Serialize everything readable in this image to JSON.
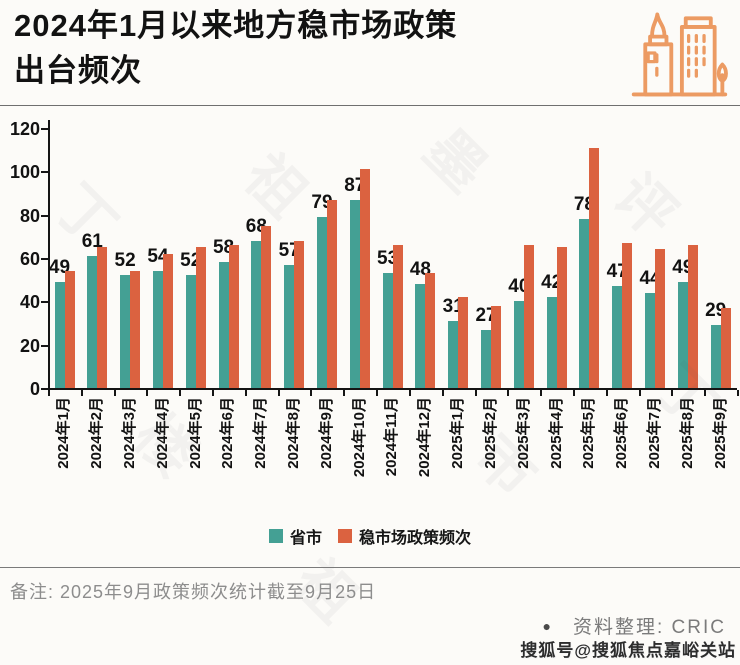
{
  "title": {
    "line1": "2024年1月以来地方稳市场政策",
    "line2": "出台频次"
  },
  "colors": {
    "provinces_green": "#44A094",
    "policy_orange": "#DB6240",
    "icon_orange": "#EC9B63",
    "axis_black": "#151515",
    "note_gray": "#8d8d8d"
  },
  "chart_data": {
    "type": "bar",
    "title": "2024年1月以来地方稳市场政策出台频次",
    "categories": [
      "2024年1月",
      "2024年2月",
      "2024年3月",
      "2024年4月",
      "2024年5月",
      "2024年6月",
      "2024年7月",
      "2024年8月",
      "2024年9月",
      "2024年10月",
      "2024年11月",
      "2024年12月",
      "2025年1月",
      "2025年2月",
      "2025年3月",
      "2025年4月",
      "2025年5月",
      "2025年6月",
      "2025年7月",
      "2025年8月",
      "2025年9月"
    ],
    "series": [
      {
        "name": "省市",
        "color": "#44A094",
        "labeled": true,
        "values": [
          49,
          61,
          52,
          54,
          52,
          58,
          68,
          57,
          79,
          87,
          53,
          48,
          31,
          27,
          40,
          42,
          78,
          47,
          44,
          49,
          29
        ]
      },
      {
        "name": "稳市场政策频次",
        "color": "#DB6240",
        "labeled": false,
        "values": [
          54,
          65,
          54,
          62,
          65,
          66,
          75,
          68,
          87,
          101,
          66,
          53,
          42,
          38,
          66,
          65,
          111,
          67,
          64,
          66,
          37
        ]
      }
    ],
    "ylim": [
      0,
      120
    ],
    "yticks": [
      0,
      20,
      40,
      60,
      80,
      100,
      120
    ],
    "grid": false,
    "legend_position": "bottom"
  },
  "note": {
    "text": "备注: 2025年9月政策频次统计截至9月25日"
  },
  "source": {
    "bullet": "●",
    "label": "资料整理: CRIC"
  },
  "watermark": {
    "sohu": "搜狐号@搜狐焦点嘉峪关站",
    "faint_chars": [
      "丁",
      "祖",
      "墨",
      "评",
      "楼",
      "市",
      "丁",
      "祖"
    ]
  }
}
